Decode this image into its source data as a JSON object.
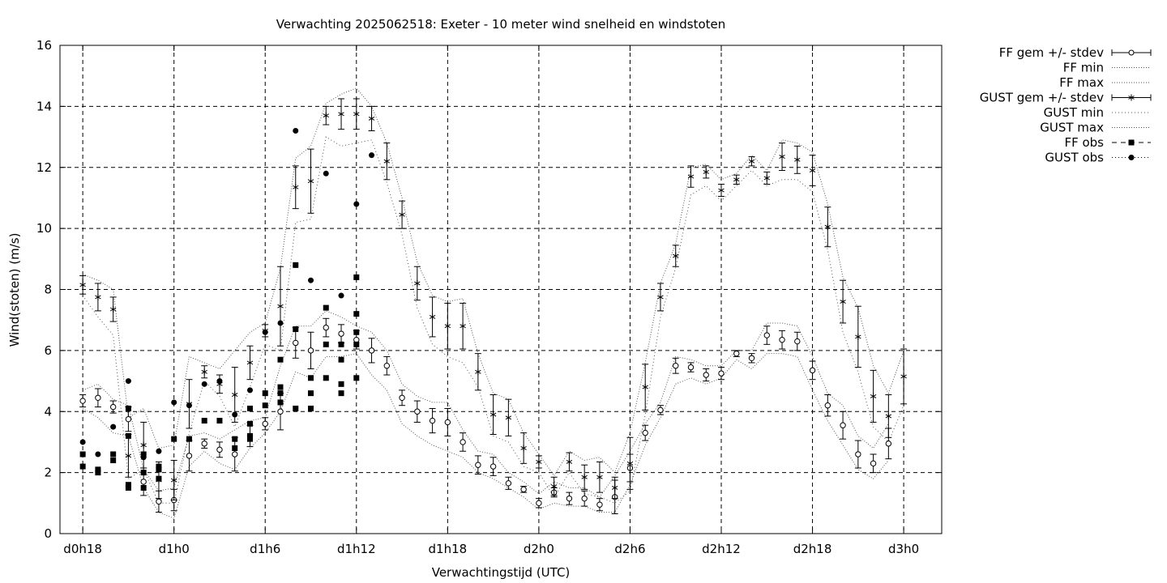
{
  "chart_data": {
    "type": "scatter",
    "title": "Verwachting 2025062518: Exeter - 10 meter wind snelheid en windstoten",
    "xlabel": "Verwachtingstijd (UTC)",
    "ylabel": "Wind(stoten) (m/s)",
    "xlim": [
      -1.5,
      56.5
    ],
    "ylim": [
      0,
      16
    ],
    "grid": true,
    "legend_position": "right",
    "x_ticks": [
      {
        "x": 0,
        "label": "d0h18"
      },
      {
        "x": 6,
        "label": "d1h0"
      },
      {
        "x": 12,
        "label": "d1h6"
      },
      {
        "x": 18,
        "label": "d1h12"
      },
      {
        "x": 24,
        "label": "d1h18"
      },
      {
        "x": 30,
        "label": "d2h0"
      },
      {
        "x": 36,
        "label": "d2h6"
      },
      {
        "x": 42,
        "label": "d2h12"
      },
      {
        "x": 48,
        "label": "d2h18"
      },
      {
        "x": 54,
        "label": "d3h0"
      }
    ],
    "y_ticks": [
      0,
      2,
      4,
      6,
      8,
      10,
      12,
      14,
      16
    ],
    "legend": [
      "FF gem +/- stdev",
      "FF min",
      "FF max",
      "GUST gem +/- stdev",
      "GUST min",
      "GUST max",
      "FF obs",
      "GUST obs"
    ],
    "ff_x": [
      0,
      1,
      2,
      3,
      4,
      5,
      6,
      7,
      8,
      9,
      10,
      11,
      12,
      13,
      14,
      15,
      16,
      17,
      18,
      19,
      20,
      21,
      22,
      23,
      24,
      25,
      26,
      27,
      28,
      29,
      30,
      31,
      32,
      33,
      34,
      35,
      36,
      37,
      38,
      39,
      40,
      41,
      42,
      43,
      44,
      45,
      46,
      47,
      48,
      49,
      50,
      51,
      52,
      53,
      54
    ],
    "ff_mean": [
      4.35,
      4.45,
      4.15,
      3.75,
      1.7,
      1.05,
      1.1,
      2.55,
      2.95,
      2.75,
      2.6,
      3.2,
      3.6,
      4.0,
      6.25,
      6.0,
      6.75,
      6.55,
      6.35,
      6.0,
      5.5,
      4.45,
      4.0,
      3.7,
      3.65,
      3.0,
      2.25,
      2.2,
      1.65,
      1.45,
      1.0,
      1.35,
      1.15,
      1.15,
      0.95,
      1.2,
      2.15,
      3.3,
      4.05,
      5.5,
      5.45,
      5.2,
      5.25,
      5.9,
      5.75,
      6.5,
      6.35,
      6.3,
      5.35,
      4.2,
      3.55,
      2.6,
      2.3,
      2.95,
      null
    ],
    "ff_sd": [
      0.2,
      0.3,
      0.2,
      0.4,
      0.45,
      0.35,
      0.35,
      0.5,
      0.15,
      0.25,
      0.55,
      0.35,
      0.2,
      0.6,
      0.5,
      0.6,
      0.3,
      0.3,
      0.3,
      0.4,
      0.3,
      0.25,
      0.35,
      0.4,
      0.45,
      0.3,
      0.3,
      0.3,
      0.2,
      0.1,
      0.15,
      0.15,
      0.2,
      0.25,
      0.2,
      0.55,
      0.45,
      0.25,
      0.15,
      0.25,
      0.15,
      0.2,
      0.2,
      0.1,
      0.15,
      0.3,
      0.3,
      0.3,
      0.3,
      0.35,
      0.45,
      0.45,
      0.3,
      0.5,
      null
    ],
    "ff_min": [
      4.1,
      3.8,
      3.3,
      3.2,
      1.5,
      0.7,
      0.5,
      2.2,
      2.7,
      2.3,
      2.1,
      2.8,
      3.3,
      4.0,
      5.3,
      5.1,
      5.8,
      5.8,
      5.9,
      5.2,
      4.7,
      3.6,
      3.2,
      2.9,
      2.7,
      2.5,
      2.0,
      1.8,
      1.5,
      1.2,
      0.8,
      1.0,
      0.9,
      0.9,
      0.7,
      0.7,
      1.6,
      2.9,
      3.8,
      4.9,
      5.1,
      4.9,
      5.1,
      5.7,
      5.4,
      5.9,
      5.9,
      5.8,
      4.7,
      3.7,
      2.9,
      2.1,
      1.8,
      2.4,
      null
    ],
    "ff_max": [
      4.7,
      4.9,
      4.4,
      4.2,
      2.1,
      1.4,
      1.5,
      3.2,
      3.3,
      3.1,
      3.4,
      3.7,
      3.8,
      5.5,
      6.8,
      6.8,
      7.3,
      7.1,
      6.8,
      6.6,
      6.0,
      4.9,
      4.5,
      4.3,
      4.3,
      3.4,
      2.7,
      2.6,
      2.0,
      1.7,
      1.3,
      1.7,
      1.5,
      1.5,
      1.2,
      1.9,
      2.7,
      3.6,
      4.3,
      5.8,
      5.7,
      5.5,
      5.5,
      6.0,
      6.0,
      6.9,
      6.9,
      6.8,
      5.8,
      4.6,
      4.2,
      3.2,
      2.8,
      3.6,
      null
    ],
    "gust_x": [
      0,
      1,
      2,
      3,
      4,
      5,
      6,
      7,
      8,
      9,
      10,
      11,
      12,
      13,
      14,
      15,
      16,
      17,
      18,
      19,
      20,
      21,
      22,
      23,
      24,
      25,
      26,
      27,
      28,
      29,
      30,
      31,
      32,
      33,
      34,
      35,
      36,
      37,
      38,
      39,
      40,
      41,
      42,
      43,
      44,
      45,
      46,
      47,
      48,
      49,
      50,
      51,
      52,
      53,
      54
    ],
    "gust_mean": [
      8.15,
      7.75,
      7.35,
      2.55,
      2.9,
      1.75,
      1.75,
      4.25,
      5.3,
      4.9,
      4.55,
      5.6,
      6.65,
      7.45,
      11.35,
      11.55,
      13.7,
      13.75,
      13.75,
      13.6,
      12.2,
      10.45,
      8.2,
      7.1,
      6.8,
      6.8,
      5.3,
      3.9,
      3.8,
      2.8,
      2.35,
      1.55,
      2.35,
      1.85,
      1.85,
      1.5,
      2.3,
      4.8,
      7.75,
      9.1,
      11.7,
      11.85,
      11.25,
      11.6,
      12.2,
      11.65,
      12.35,
      12.25,
      11.9,
      10.05,
      7.6,
      6.45,
      4.5,
      3.85,
      5.15
    ],
    "gust_sd": [
      0.3,
      0.45,
      0.4,
      0.7,
      0.75,
      0.6,
      0.65,
      0.8,
      0.2,
      0.3,
      0.9,
      0.55,
      0.2,
      1.3,
      0.7,
      1.05,
      0.3,
      0.5,
      0.5,
      0.4,
      0.6,
      0.45,
      0.55,
      0.65,
      0.75,
      0.75,
      0.6,
      0.65,
      0.6,
      0.5,
      0.2,
      0.3,
      0.3,
      0.4,
      0.5,
      0.35,
      0.85,
      0.75,
      0.45,
      0.35,
      0.35,
      0.2,
      0.2,
      0.15,
      0.15,
      0.2,
      0.45,
      0.45,
      0.5,
      0.65,
      0.7,
      1.0,
      0.85,
      0.7,
      0.9
    ],
    "gust_min": [
      7.8,
      7.1,
      6.5,
      1.8,
      2.1,
      1.0,
      1.0,
      3.3,
      5.0,
      4.5,
      3.5,
      4.8,
      6.2,
      6.0,
      10.2,
      10.3,
      13.0,
      12.7,
      12.8,
      12.9,
      11.5,
      9.8,
      7.4,
      6.2,
      5.8,
      5.6,
      4.8,
      3.2,
      3.0,
      2.2,
      2.0,
      1.2,
      2.0,
      1.3,
      1.2,
      1.0,
      1.4,
      3.9,
      7.1,
      8.7,
      11.1,
      11.4,
      10.9,
      11.4,
      11.9,
      11.4,
      11.6,
      11.6,
      11.2,
      9.3,
      6.6,
      5.3,
      3.5,
      3.0,
      4.2
    ],
    "gust_max": [
      8.5,
      8.3,
      8.0,
      3.8,
      4.1,
      2.8,
      2.9,
      5.8,
      5.6,
      5.4,
      6.0,
      6.6,
      6.9,
      8.7,
      12.3,
      12.7,
      14.1,
      14.4,
      14.6,
      14.0,
      12.8,
      11.0,
      8.9,
      7.8,
      7.6,
      7.7,
      5.9,
      4.6,
      4.4,
      3.3,
      2.6,
      1.9,
      2.7,
      2.4,
      2.5,
      2.0,
      3.3,
      5.6,
      8.2,
      9.5,
      12.0,
      12.1,
      11.6,
      11.8,
      12.4,
      11.9,
      12.9,
      12.8,
      12.5,
      10.8,
      8.4,
      7.4,
      5.5,
      4.6,
      6.0
    ],
    "ff_obs": [
      [
        0,
        2.6
      ],
      [
        0,
        2.2
      ],
      [
        1,
        2.1
      ],
      [
        1,
        2.0
      ],
      [
        2,
        2.6
      ],
      [
        2,
        2.4
      ],
      [
        3,
        4.1
      ],
      [
        3,
        3.2
      ],
      [
        3,
        1.6
      ],
      [
        3,
        1.5
      ],
      [
        4,
        2.6
      ],
      [
        4,
        2.0
      ],
      [
        4,
        1.5
      ],
      [
        5,
        2.2
      ],
      [
        5,
        2.1
      ],
      [
        5,
        1.8
      ],
      [
        6,
        3.1
      ],
      [
        7,
        3.1
      ],
      [
        8,
        3.7
      ],
      [
        9,
        3.7
      ],
      [
        10,
        3.1
      ],
      [
        10,
        2.8
      ],
      [
        11,
        4.1
      ],
      [
        11,
        3.6
      ],
      [
        11,
        3.2
      ],
      [
        11,
        3.1
      ],
      [
        12,
        4.6
      ],
      [
        12,
        4.2
      ],
      [
        13,
        4.8
      ],
      [
        13,
        4.6
      ],
      [
        13,
        4.3
      ],
      [
        13,
        5.7
      ],
      [
        14,
        6.7
      ],
      [
        14,
        4.1
      ],
      [
        14,
        8.8
      ],
      [
        15,
        5.1
      ],
      [
        15,
        4.6
      ],
      [
        15,
        4.1
      ],
      [
        16,
        7.4
      ],
      [
        16,
        6.2
      ],
      [
        16,
        5.1
      ],
      [
        17,
        6.2
      ],
      [
        17,
        5.7
      ],
      [
        17,
        4.9
      ],
      [
        17,
        4.6
      ],
      [
        18,
        6.6
      ],
      [
        18,
        6.2
      ],
      [
        18,
        5.1
      ],
      [
        18,
        8.4
      ],
      [
        18,
        7.2
      ]
    ],
    "gust_obs": [
      [
        0,
        3.0
      ],
      [
        1,
        2.6
      ],
      [
        2,
        3.5
      ],
      [
        3,
        5.0
      ],
      [
        4,
        2.5
      ],
      [
        5,
        2.7
      ],
      [
        6,
        4.3
      ],
      [
        7,
        4.2
      ],
      [
        8,
        4.9
      ],
      [
        9,
        5.0
      ],
      [
        10,
        3.9
      ],
      [
        11,
        4.7
      ],
      [
        12,
        6.6
      ],
      [
        13,
        6.9
      ],
      [
        14,
        13.2
      ],
      [
        15,
        8.3
      ],
      [
        16,
        11.8
      ],
      [
        17,
        7.8
      ],
      [
        18,
        10.8
      ],
      [
        19,
        12.4
      ]
    ]
  }
}
